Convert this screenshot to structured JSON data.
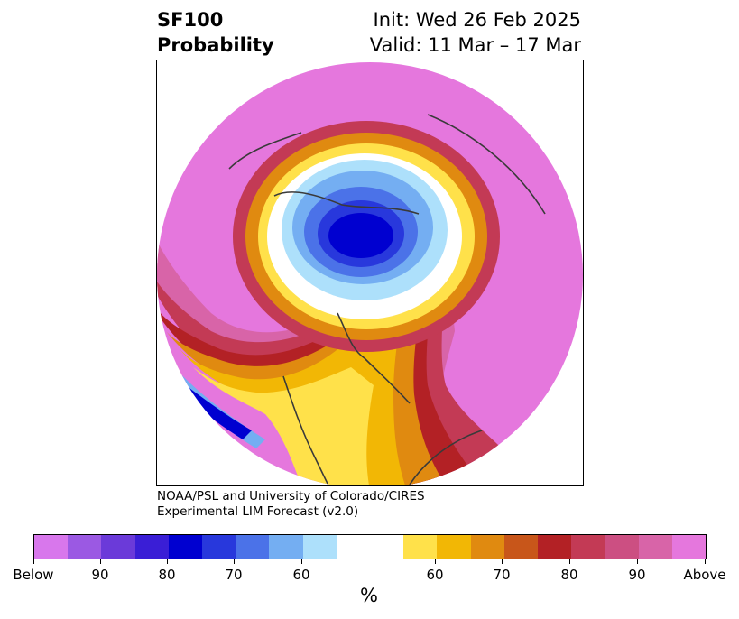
{
  "header": {
    "title_line1": "SF100",
    "title_line2": "Probability",
    "init_line": "Init: Wed 26 Feb 2025",
    "valid_line": "Valid: 11 Mar – 17 Mar"
  },
  "credit": {
    "line1": "NOAA/PSL and University of Colorado/CIRES",
    "line2": "Experimental LIM Forecast (v2.0)"
  },
  "colorbar": {
    "colors": [
      "#d877ec",
      "#9b59e3",
      "#6b3ad9",
      "#3a1ed6",
      "#0000d0",
      "#2838dc",
      "#4b72e8",
      "#74aef2",
      "#ade0fb",
      "#ffffff",
      "#ffe14a",
      "#f2b705",
      "#e08a10",
      "#c8561a",
      "#b32125",
      "#c33a55",
      "#cc4f82",
      "#d864a8",
      "#e577dd"
    ],
    "labels": [
      "Below",
      "90",
      "80",
      "70",
      "60",
      "60",
      "70",
      "80",
      "90",
      "Above"
    ],
    "unit": "%"
  },
  "map": {
    "description_colors": {
      "above": "#e577dd",
      "below_core": "#0000d0",
      "neutral": "#ffffff",
      "land_outline": "#3a3a3a"
    }
  }
}
